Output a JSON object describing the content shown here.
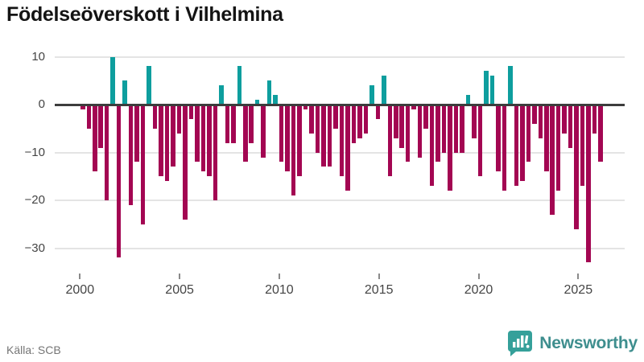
{
  "title": "Födelseöverskott i Vilhelmina",
  "source": {
    "label": "Källa: SCB"
  },
  "branding": {
    "name": "Newsworthy",
    "logo_icon": "chart-speech-bubble",
    "text_color": "#3e8e8e",
    "icon_color": "#35a09a"
  },
  "chart_data": {
    "type": "bar",
    "title": "Födelseöverskott i Vilhelmina",
    "x_tick_labels": [
      "2000",
      "2005",
      "2010",
      "2015",
      "2020",
      "2025"
    ],
    "y_ticks": [
      10,
      0,
      -10,
      -20,
      -30
    ],
    "y_tick_labels": [
      "10",
      "0",
      "−10",
      "−20",
      "−30"
    ],
    "ylim": [
      -35,
      11
    ],
    "grid": "horizontal",
    "legend": "none",
    "positive_color": "#0e9e9e",
    "negative_color": "#a30652",
    "values": [
      -1,
      -5,
      -14,
      -9,
      -20,
      10,
      -32,
      5,
      -21,
      -12,
      -25,
      8,
      -5,
      -15,
      -16,
      -13,
      -6,
      -24,
      -3,
      -12,
      -14,
      -15,
      -20,
      4,
      -8,
      -8,
      8,
      -12,
      -8,
      1,
      -11,
      5,
      2,
      -12,
      -14,
      -19,
      -15,
      -1,
      -6,
      -10,
      -13,
      -13,
      -5,
      -15,
      -18,
      -8,
      -7,
      -6,
      4,
      -3,
      6,
      -15,
      -7,
      -9,
      -12,
      -1,
      -11,
      -5,
      -17,
      -12,
      -10,
      -18,
      -10,
      -10,
      2,
      -7,
      -15,
      7,
      6,
      -14,
      -18,
      8,
      -17,
      -16,
      -12,
      -4,
      -7,
      -14,
      -23,
      -18,
      -6,
      -9,
      -26,
      -17,
      -33,
      -6,
      -12
    ]
  }
}
